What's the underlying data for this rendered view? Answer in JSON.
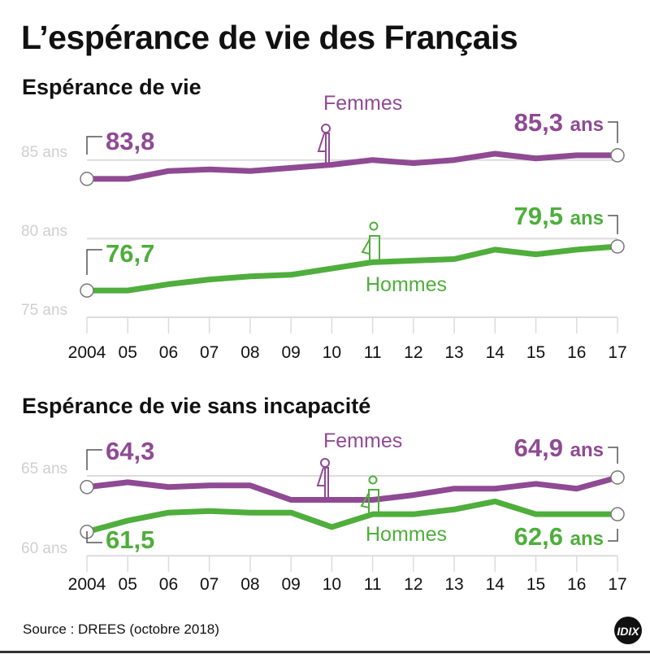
{
  "title": "L’espérance de vie des Français",
  "source": "Source : DREES (octobre 2018)",
  "logo_text": "IDIX",
  "colors": {
    "femmes": "#8f4a93",
    "hommes": "#4fae3c",
    "grid": "#dcdcdc",
    "axis_label": "#cfcfcf"
  },
  "chart_data": [
    {
      "type": "line",
      "title": "Espérance de vie",
      "categories": [
        "2004",
        "05",
        "06",
        "07",
        "08",
        "09",
        "10",
        "11",
        "12",
        "13",
        "14",
        "15",
        "16",
        "17"
      ],
      "yticks": [
        "75 ans",
        "80 ans",
        "85 ans"
      ],
      "ytick_values": [
        75,
        80,
        85
      ],
      "ylim": [
        75,
        85
      ],
      "grid": true,
      "series": [
        {
          "name": "Femmes",
          "start_label": "83,8",
          "end_label": "85,3",
          "end_unit": "ans",
          "values": [
            83.8,
            83.8,
            84.3,
            84.4,
            84.3,
            84.5,
            84.7,
            85.0,
            84.8,
            85.0,
            85.4,
            85.1,
            85.3,
            85.3
          ]
        },
        {
          "name": "Hommes",
          "start_label": "76,7",
          "end_label": "79,5",
          "end_unit": "ans",
          "values": [
            76.7,
            76.7,
            77.1,
            77.4,
            77.6,
            77.7,
            78.1,
            78.5,
            78.6,
            78.7,
            79.3,
            79.0,
            79.3,
            79.5
          ]
        }
      ]
    },
    {
      "type": "line",
      "title": "Espérance de vie sans incapacité",
      "categories": [
        "2004",
        "05",
        "06",
        "07",
        "08",
        "09",
        "10",
        "11",
        "12",
        "13",
        "14",
        "15",
        "16",
        "17"
      ],
      "yticks": [
        "60 ans",
        "65 ans"
      ],
      "ytick_values": [
        60,
        65
      ],
      "ylim": [
        60,
        65
      ],
      "grid": true,
      "series": [
        {
          "name": "Femmes",
          "start_label": "64,3",
          "end_label": "64,9",
          "end_unit": "ans",
          "values": [
            64.3,
            64.6,
            64.3,
            64.4,
            64.4,
            63.5,
            63.5,
            63.5,
            63.8,
            64.2,
            64.2,
            64.5,
            64.2,
            64.9
          ]
        },
        {
          "name": "Hommes",
          "start_label": "61,5",
          "end_label": "62,6",
          "end_unit": "ans",
          "values": [
            61.5,
            62.2,
            62.7,
            62.8,
            62.7,
            62.7,
            61.8,
            62.6,
            62.6,
            62.9,
            63.4,
            62.6,
            62.6,
            62.6
          ]
        }
      ]
    }
  ]
}
